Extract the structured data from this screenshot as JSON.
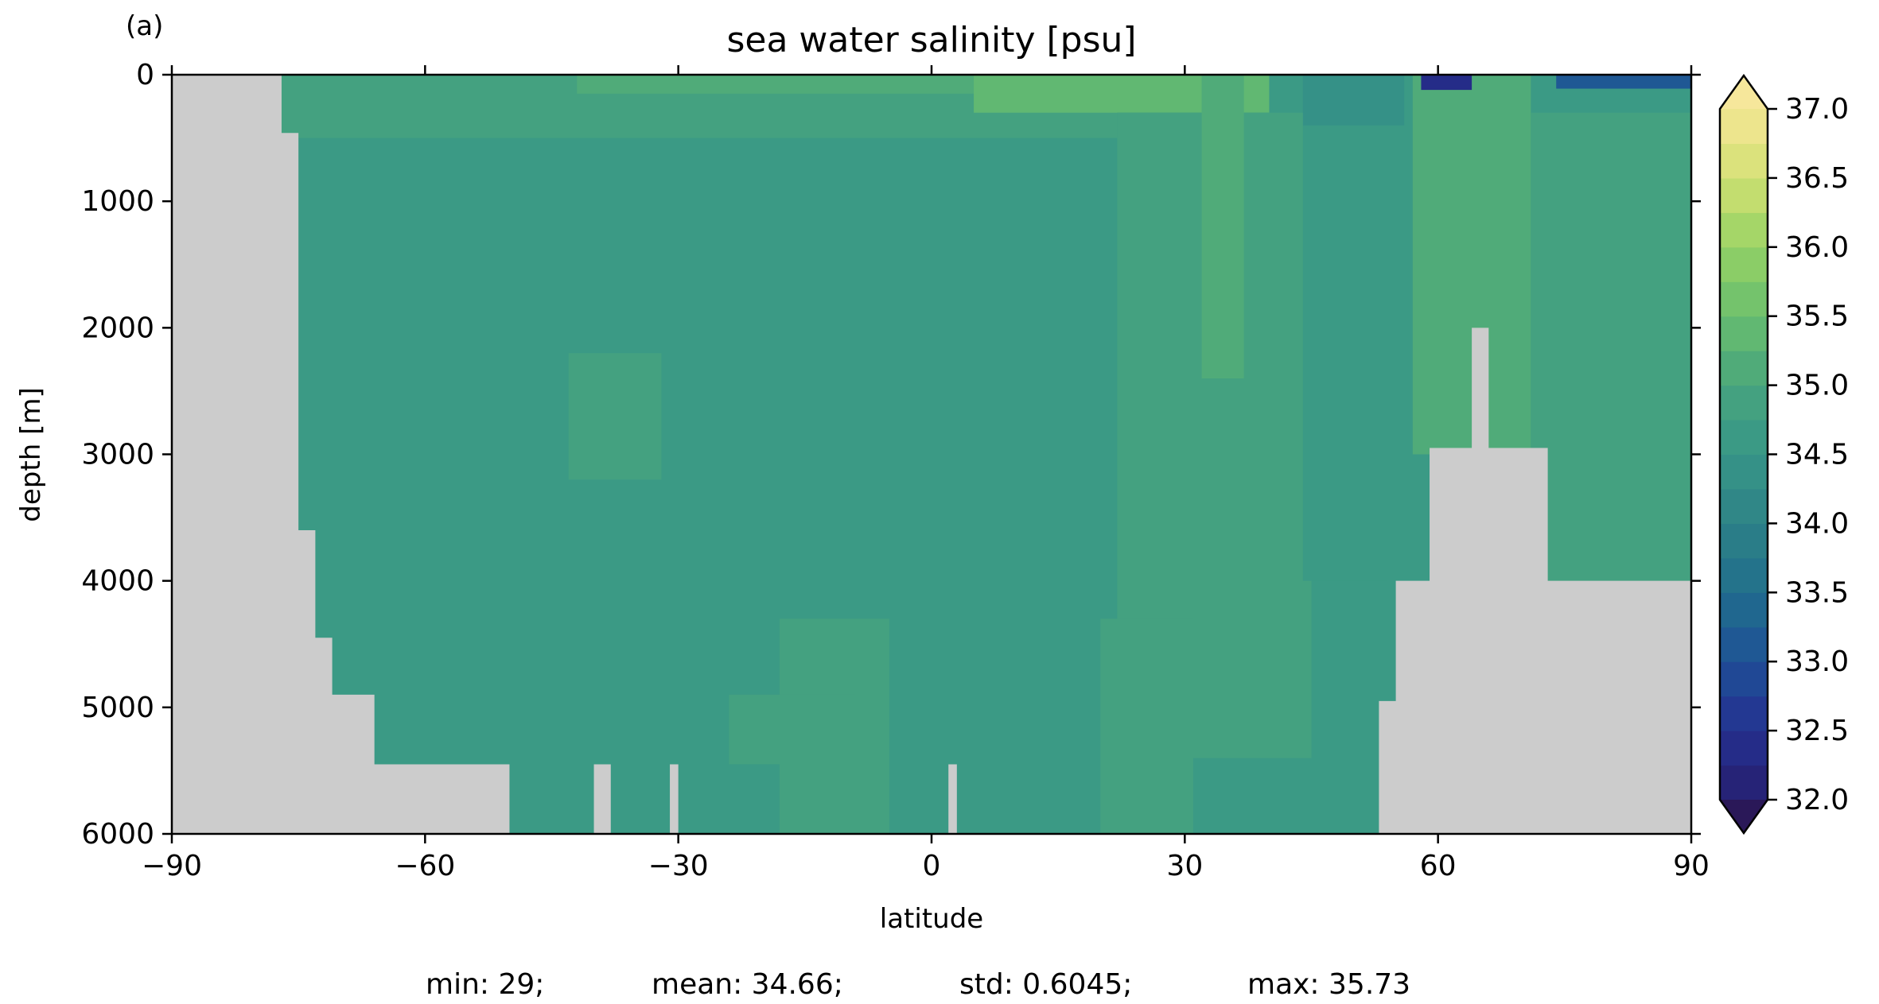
{
  "chart_data": {
    "type": "heatmap",
    "panel_label": "(a)",
    "title": "sea water salinity [psu]",
    "xlabel": "latitude",
    "ylabel": "depth [m]",
    "xlim": [
      -90,
      90
    ],
    "ylim": [
      6000,
      0
    ],
    "xticks": [
      -90,
      -60,
      -30,
      0,
      30,
      60,
      90
    ],
    "xtick_labels": [
      "−90",
      "−60",
      "−30",
      "0",
      "30",
      "60",
      "90"
    ],
    "yticks": [
      0,
      1000,
      2000,
      3000,
      4000,
      5000,
      6000
    ],
    "ytick_labels": [
      "0",
      "1000",
      "2000",
      "3000",
      "4000",
      "5000",
      "6000"
    ],
    "colorbar": {
      "min": 32.0,
      "max": 37.0,
      "step": 0.25,
      "extend": "both",
      "ticks": [
        32.0,
        32.5,
        33.0,
        33.5,
        34.0,
        34.5,
        35.0,
        35.5,
        36.0,
        36.5,
        37.0
      ],
      "tick_labels": [
        "32.0",
        "32.5",
        "33.0",
        "33.5",
        "34.0",
        "34.5",
        "35.0",
        "35.5",
        "36.0",
        "36.5",
        "37.0"
      ],
      "low_color": "#2a1858",
      "high_color": "#f6e79b"
    },
    "land_color": "#cccccc",
    "bottom_depth": [
      [
        -90,
        0
      ],
      [
        -77,
        460
      ],
      [
        -75,
        3600
      ],
      [
        -73,
        4450
      ],
      [
        -71,
        4900
      ],
      [
        -66,
        5450
      ],
      [
        -50,
        6000
      ],
      [
        -40,
        5450
      ],
      [
        -38,
        6000
      ],
      [
        -31,
        5450
      ],
      [
        -30,
        6000
      ],
      [
        2,
        5450
      ],
      [
        3,
        6000
      ],
      [
        53,
        4950
      ],
      [
        55,
        4000
      ],
      [
        59,
        2950
      ],
      [
        62,
        2950
      ],
      [
        64,
        2000
      ],
      [
        66,
        2950
      ],
      [
        72,
        2950
      ],
      [
        73,
        4000
      ],
      [
        90,
        4000
      ]
    ],
    "salinity_regions": [
      {
        "name": "deep-water",
        "value": 34.6,
        "lat": [
          -90,
          90
        ],
        "depth": [
          0,
          6000
        ]
      },
      {
        "name": "upper-south",
        "value": 34.85,
        "lat": [
          -78,
          22
        ],
        "depth": [
          0,
          500
        ]
      },
      {
        "name": "subtropical-surface",
        "value": 35.1,
        "lat": [
          -42,
          20
        ],
        "depth": [
          0,
          150
        ]
      },
      {
        "name": "tropical-core",
        "value": 35.55,
        "lat": [
          15,
          33
        ],
        "depth": [
          0,
          170
        ]
      },
      {
        "name": "subtropical-north",
        "value": 35.3,
        "lat": [
          5,
          40
        ],
        "depth": [
          0,
          300
        ]
      },
      {
        "name": "atlantic-mid",
        "value": 34.85,
        "lat": [
          22,
          45
        ],
        "depth": [
          300,
          5400
        ]
      },
      {
        "name": "atlantic-ridge",
        "value": 35.0,
        "lat": [
          32,
          37
        ],
        "depth": [
          0,
          2400
        ]
      },
      {
        "name": "labrador",
        "value": 34.5,
        "lat": [
          44,
          54
        ],
        "depth": [
          0,
          4000
        ]
      },
      {
        "name": "north-surface",
        "value": 34.25,
        "lat": [
          44,
          56
        ],
        "depth": [
          0,
          400
        ]
      },
      {
        "name": "nordic-upper",
        "value": 35.1,
        "lat": [
          57,
          71
        ],
        "depth": [
          0,
          3000
        ]
      },
      {
        "name": "arctic",
        "value": 34.75,
        "lat": [
          71,
          90
        ],
        "depth": [
          300,
          4500
        ]
      },
      {
        "name": "fresh-shelf",
        "value": 33.0,
        "lat": [
          74,
          90
        ],
        "depth": [
          0,
          110
        ]
      },
      {
        "name": "fresh-pocket",
        "value": 32.3,
        "lat": [
          58,
          64
        ],
        "depth": [
          0,
          120
        ]
      },
      {
        "name": "south-deep-patch",
        "value": 34.85,
        "lat": [
          -43,
          -32
        ],
        "depth": [
          2200,
          3200
        ]
      },
      {
        "name": "equatorial-deep",
        "value": 34.85,
        "lat": [
          -18,
          -5
        ],
        "depth": [
          4300,
          6000
        ]
      },
      {
        "name": "mid-deep",
        "value": 34.85,
        "lat": [
          -24,
          -9
        ],
        "depth": [
          4900,
          5450
        ]
      },
      {
        "name": "north-deep",
        "value": 34.85,
        "lat": [
          20,
          31
        ],
        "depth": [
          4300,
          6000
        ]
      }
    ]
  },
  "stats": {
    "min": "min: 29;",
    "mean": "mean: 34.66;",
    "std": "std: 0.6045;",
    "max": "max: 35.73"
  }
}
